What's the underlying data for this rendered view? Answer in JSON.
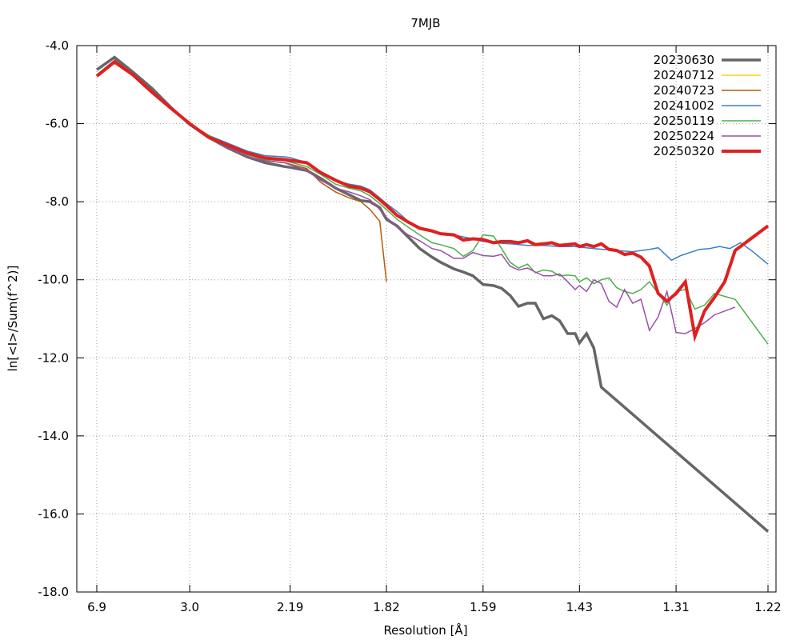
{
  "chart_data": {
    "type": "line",
    "title": "7MJB",
    "xlabel": "Resolution [Å]",
    "ylabel": "ln[<I>/Sum(f^2)]",
    "x_scale": "1/d^2",
    "xlim_resolution": [
      6.9,
      1.22
    ],
    "ylim": [
      -18.0,
      -4.0
    ],
    "x_ticks": [
      "6.9",
      "3.0",
      "2.19",
      "1.82",
      "1.59",
      "1.43",
      "1.31",
      "1.22"
    ],
    "y_ticks": [
      "-4.0",
      "-6.0",
      "-8.0",
      "-10.0",
      "-12.0",
      "-14.0",
      "-16.0",
      "-18.0"
    ],
    "grid": true,
    "legend_position": "top-right",
    "series": [
      {
        "name": "20230630",
        "color": "#666666",
        "width": 3.5,
        "points": [
          [
            6.9,
            -4.62
          ],
          [
            5.12,
            -4.3
          ],
          [
            4.22,
            -4.68
          ],
          [
            3.66,
            -5.1
          ],
          [
            3.27,
            -5.6
          ],
          [
            3.0,
            -6.02
          ],
          [
            2.78,
            -6.35
          ],
          [
            2.6,
            -6.62
          ],
          [
            2.45,
            -6.85
          ],
          [
            2.33,
            -7.0
          ],
          [
            2.22,
            -7.1
          ],
          [
            2.19,
            -7.12
          ],
          [
            2.11,
            -7.2
          ],
          [
            2.05,
            -7.4
          ],
          [
            1.99,
            -7.65
          ],
          [
            1.94,
            -7.82
          ],
          [
            1.9,
            -7.97
          ],
          [
            1.87,
            -8.0
          ],
          [
            1.84,
            -8.15
          ],
          [
            1.82,
            -8.45
          ],
          [
            1.79,
            -8.62
          ],
          [
            1.76,
            -8.9
          ],
          [
            1.73,
            -9.2
          ],
          [
            1.7,
            -9.42
          ],
          [
            1.68,
            -9.55
          ],
          [
            1.65,
            -9.72
          ],
          [
            1.63,
            -9.8
          ],
          [
            1.61,
            -9.9
          ],
          [
            1.59,
            -10.12
          ],
          [
            1.57,
            -10.15
          ],
          [
            1.555,
            -10.22
          ],
          [
            1.54,
            -10.4
          ],
          [
            1.525,
            -10.68
          ],
          [
            1.51,
            -10.6
          ],
          [
            1.497,
            -10.6
          ],
          [
            1.484,
            -11.0
          ],
          [
            1.471,
            -10.92
          ],
          [
            1.459,
            -11.05
          ],
          [
            1.447,
            -11.38
          ],
          [
            1.436,
            -11.38
          ],
          [
            1.43,
            -11.62
          ],
          [
            1.42,
            -11.38
          ],
          [
            1.41,
            -11.75
          ],
          [
            1.4,
            -12.75
          ],
          [
            1.22,
            -16.45
          ]
        ]
      },
      {
        "name": "20240712",
        "color": "#ffd21f",
        "width": 1.5,
        "points": []
      },
      {
        "name": "20240723",
        "color": "#b45a0a",
        "width": 1.5,
        "points": [
          [
            5.12,
            -4.35
          ],
          [
            3.66,
            -5.2
          ],
          [
            3.0,
            -6.0
          ],
          [
            2.6,
            -6.6
          ],
          [
            2.33,
            -6.95
          ],
          [
            2.22,
            -7.0
          ],
          [
            2.11,
            -7.15
          ],
          [
            2.05,
            -7.5
          ],
          [
            1.99,
            -7.75
          ],
          [
            1.94,
            -7.9
          ],
          [
            1.9,
            -8.0
          ],
          [
            1.87,
            -8.2
          ],
          [
            1.84,
            -8.5
          ],
          [
            1.82,
            -10.05
          ]
        ]
      },
      {
        "name": "20241002",
        "color": "#3a7fc0",
        "width": 1.5,
        "points": [
          [
            6.9,
            -4.75
          ],
          [
            5.12,
            -4.38
          ],
          [
            4.22,
            -4.72
          ],
          [
            3.66,
            -5.2
          ],
          [
            3.27,
            -5.62
          ],
          [
            3.0,
            -6.0
          ],
          [
            2.78,
            -6.3
          ],
          [
            2.6,
            -6.5
          ],
          [
            2.45,
            -6.7
          ],
          [
            2.33,
            -6.82
          ],
          [
            2.22,
            -6.85
          ],
          [
            2.19,
            -6.87
          ],
          [
            2.11,
            -7.0
          ],
          [
            2.05,
            -7.25
          ],
          [
            1.99,
            -7.45
          ],
          [
            1.94,
            -7.55
          ],
          [
            1.9,
            -7.6
          ],
          [
            1.87,
            -7.7
          ],
          [
            1.84,
            -7.9
          ],
          [
            1.82,
            -8.05
          ],
          [
            1.79,
            -8.25
          ],
          [
            1.76,
            -8.5
          ],
          [
            1.73,
            -8.65
          ],
          [
            1.7,
            -8.75
          ],
          [
            1.68,
            -8.8
          ],
          [
            1.65,
            -8.85
          ],
          [
            1.63,
            -8.9
          ],
          [
            1.61,
            -8.95
          ],
          [
            1.59,
            -9.02
          ],
          [
            1.57,
            -9.05
          ],
          [
            1.54,
            -9.08
          ],
          [
            1.51,
            -9.12
          ],
          [
            1.484,
            -9.12
          ],
          [
            1.459,
            -9.15
          ],
          [
            1.436,
            -9.15
          ],
          [
            1.41,
            -9.2
          ],
          [
            1.38,
            -9.25
          ],
          [
            1.36,
            -9.28
          ],
          [
            1.34,
            -9.22
          ],
          [
            1.33,
            -9.18
          ],
          [
            1.315,
            -9.5
          ],
          [
            1.305,
            -9.38
          ],
          [
            1.295,
            -9.3
          ],
          [
            1.285,
            -9.22
          ],
          [
            1.275,
            -9.2
          ],
          [
            1.265,
            -9.15
          ],
          [
            1.255,
            -9.2
          ],
          [
            1.245,
            -9.05
          ],
          [
            1.235,
            -9.25
          ],
          [
            1.22,
            -9.6
          ]
        ]
      },
      {
        "name": "20250119",
        "color": "#4cae4c",
        "width": 1.5,
        "points": [
          [
            6.9,
            -4.75
          ],
          [
            5.12,
            -4.38
          ],
          [
            4.22,
            -4.72
          ],
          [
            3.66,
            -5.2
          ],
          [
            3.27,
            -5.62
          ],
          [
            3.0,
            -6.0
          ],
          [
            2.78,
            -6.3
          ],
          [
            2.6,
            -6.55
          ],
          [
            2.45,
            -6.8
          ],
          [
            2.33,
            -6.92
          ],
          [
            2.22,
            -6.95
          ],
          [
            2.11,
            -7.1
          ],
          [
            2.05,
            -7.3
          ],
          [
            1.99,
            -7.55
          ],
          [
            1.94,
            -7.65
          ],
          [
            1.9,
            -7.72
          ],
          [
            1.87,
            -7.85
          ],
          [
            1.84,
            -8.05
          ],
          [
            1.82,
            -8.2
          ],
          [
            1.79,
            -8.45
          ],
          [
            1.76,
            -8.65
          ],
          [
            1.73,
            -8.85
          ],
          [
            1.7,
            -9.05
          ],
          [
            1.68,
            -9.1
          ],
          [
            1.65,
            -9.2
          ],
          [
            1.63,
            -9.4
          ],
          [
            1.61,
            -9.25
          ],
          [
            1.59,
            -8.85
          ],
          [
            1.57,
            -8.88
          ],
          [
            1.555,
            -9.2
          ],
          [
            1.54,
            -9.55
          ],
          [
            1.525,
            -9.7
          ],
          [
            1.51,
            -9.6
          ],
          [
            1.497,
            -9.82
          ],
          [
            1.484,
            -9.75
          ],
          [
            1.471,
            -9.78
          ],
          [
            1.459,
            -9.9
          ],
          [
            1.447,
            -9.88
          ],
          [
            1.436,
            -9.9
          ],
          [
            1.43,
            -10.05
          ],
          [
            1.42,
            -9.95
          ],
          [
            1.41,
            -10.1
          ],
          [
            1.4,
            -10.0
          ],
          [
            1.39,
            -9.95
          ],
          [
            1.38,
            -10.2
          ],
          [
            1.37,
            -10.3
          ],
          [
            1.36,
            -10.35
          ],
          [
            1.35,
            -10.25
          ],
          [
            1.34,
            -10.05
          ],
          [
            1.33,
            -10.35
          ],
          [
            1.32,
            -10.65
          ],
          [
            1.31,
            -10.3
          ],
          [
            1.3,
            -10.25
          ],
          [
            1.29,
            -10.75
          ],
          [
            1.28,
            -10.65
          ],
          [
            1.27,
            -10.35
          ],
          [
            1.25,
            -10.5
          ],
          [
            1.22,
            -11.65
          ]
        ]
      },
      {
        "name": "20250224",
        "color": "#9a4fa8",
        "width": 1.5,
        "points": [
          [
            6.9,
            -4.75
          ],
          [
            5.12,
            -4.38
          ],
          [
            4.22,
            -4.72
          ],
          [
            3.66,
            -5.2
          ],
          [
            3.27,
            -5.62
          ],
          [
            3.0,
            -6.02
          ],
          [
            2.78,
            -6.35
          ],
          [
            2.6,
            -6.6
          ],
          [
            2.45,
            -6.85
          ],
          [
            2.33,
            -6.95
          ],
          [
            2.22,
            -7.0
          ],
          [
            2.11,
            -7.2
          ],
          [
            2.05,
            -7.45
          ],
          [
            1.99,
            -7.65
          ],
          [
            1.94,
            -7.75
          ],
          [
            1.9,
            -7.85
          ],
          [
            1.87,
            -7.95
          ],
          [
            1.84,
            -8.2
          ],
          [
            1.82,
            -8.4
          ],
          [
            1.79,
            -8.65
          ],
          [
            1.76,
            -8.85
          ],
          [
            1.73,
            -9.0
          ],
          [
            1.7,
            -9.2
          ],
          [
            1.68,
            -9.25
          ],
          [
            1.65,
            -9.45
          ],
          [
            1.63,
            -9.45
          ],
          [
            1.61,
            -9.3
          ],
          [
            1.59,
            -9.38
          ],
          [
            1.57,
            -9.4
          ],
          [
            1.555,
            -9.35
          ],
          [
            1.54,
            -9.65
          ],
          [
            1.525,
            -9.75
          ],
          [
            1.51,
            -9.7
          ],
          [
            1.497,
            -9.8
          ],
          [
            1.484,
            -9.9
          ],
          [
            1.471,
            -9.9
          ],
          [
            1.459,
            -9.85
          ],
          [
            1.447,
            -10.05
          ],
          [
            1.436,
            -10.25
          ],
          [
            1.43,
            -10.15
          ],
          [
            1.42,
            -10.3
          ],
          [
            1.41,
            -10.0
          ],
          [
            1.4,
            -10.1
          ],
          [
            1.39,
            -10.55
          ],
          [
            1.38,
            -10.7
          ],
          [
            1.37,
            -10.25
          ],
          [
            1.36,
            -10.6
          ],
          [
            1.35,
            -10.5
          ],
          [
            1.34,
            -11.3
          ],
          [
            1.33,
            -10.95
          ],
          [
            1.32,
            -10.3
          ],
          [
            1.31,
            -11.35
          ],
          [
            1.3,
            -11.38
          ],
          [
            1.29,
            -11.25
          ],
          [
            1.28,
            -11.1
          ],
          [
            1.27,
            -10.9
          ],
          [
            1.25,
            -10.7
          ]
        ]
      },
      {
        "name": "20250320",
        "color": "#e02020",
        "width": 4,
        "points": [
          [
            6.9,
            -4.78
          ],
          [
            5.12,
            -4.42
          ],
          [
            4.22,
            -4.75
          ],
          [
            3.66,
            -5.2
          ],
          [
            3.27,
            -5.62
          ],
          [
            3.0,
            -6.0
          ],
          [
            2.78,
            -6.35
          ],
          [
            2.6,
            -6.55
          ],
          [
            2.45,
            -6.75
          ],
          [
            2.33,
            -6.88
          ],
          [
            2.22,
            -6.92
          ],
          [
            2.11,
            -7.0
          ],
          [
            2.05,
            -7.25
          ],
          [
            1.99,
            -7.45
          ],
          [
            1.94,
            -7.6
          ],
          [
            1.9,
            -7.65
          ],
          [
            1.87,
            -7.75
          ],
          [
            1.84,
            -7.95
          ],
          [
            1.82,
            -8.1
          ],
          [
            1.79,
            -8.35
          ],
          [
            1.76,
            -8.52
          ],
          [
            1.73,
            -8.68
          ],
          [
            1.7,
            -8.75
          ],
          [
            1.68,
            -8.82
          ],
          [
            1.65,
            -8.85
          ],
          [
            1.63,
            -8.98
          ],
          [
            1.61,
            -8.95
          ],
          [
            1.59,
            -8.97
          ],
          [
            1.57,
            -9.05
          ],
          [
            1.555,
            -9.02
          ],
          [
            1.54,
            -9.02
          ],
          [
            1.525,
            -9.05
          ],
          [
            1.51,
            -9.0
          ],
          [
            1.497,
            -9.1
          ],
          [
            1.484,
            -9.08
          ],
          [
            1.471,
            -9.05
          ],
          [
            1.459,
            -9.12
          ],
          [
            1.447,
            -9.1
          ],
          [
            1.436,
            -9.08
          ],
          [
            1.43,
            -9.15
          ],
          [
            1.42,
            -9.1
          ],
          [
            1.41,
            -9.15
          ],
          [
            1.4,
            -9.08
          ],
          [
            1.39,
            -9.22
          ],
          [
            1.38,
            -9.25
          ],
          [
            1.37,
            -9.35
          ],
          [
            1.36,
            -9.32
          ],
          [
            1.35,
            -9.42
          ],
          [
            1.34,
            -9.65
          ],
          [
            1.33,
            -10.35
          ],
          [
            1.32,
            -10.55
          ],
          [
            1.31,
            -10.35
          ],
          [
            1.3,
            -10.05
          ],
          [
            1.29,
            -11.45
          ],
          [
            1.28,
            -10.8
          ],
          [
            1.27,
            -10.45
          ],
          [
            1.26,
            -10.05
          ],
          [
            1.25,
            -9.25
          ],
          [
            1.22,
            -8.62
          ]
        ]
      }
    ]
  }
}
